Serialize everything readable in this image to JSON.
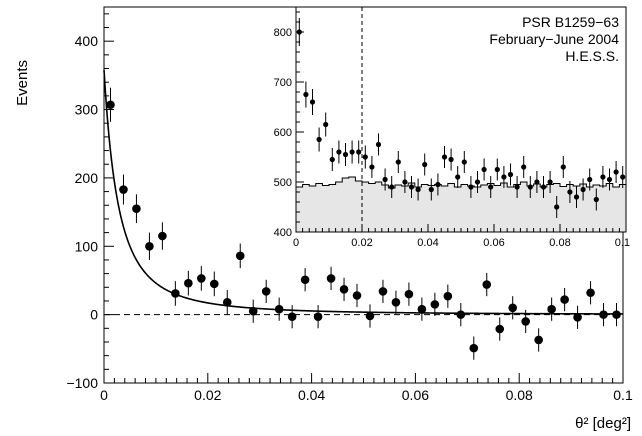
{
  "chart_data": [
    {
      "type": "scatter",
      "title": "",
      "xlabel": "θ² [deg²]",
      "ylabel": "Events",
      "xlim": [
        0,
        0.1
      ],
      "ylim": [
        -100,
        450
      ],
      "xticks": [
        0,
        0.02,
        0.04,
        0.06,
        0.08,
        0.1
      ],
      "yticks": [
        -100,
        0,
        100,
        200,
        300,
        400
      ],
      "xtick_labels": [
        "0",
        "0.02",
        "0.04",
        "0.06",
        "0.08",
        "0.1"
      ],
      "ytick_labels": [
        "−100",
        "0",
        "100",
        "200",
        "300",
        "400"
      ],
      "annotations": [
        "PSR B1259−63",
        "February−June 2004",
        "H.E.S.S."
      ],
      "grid": false,
      "series": [
        {
          "kind": "points-with-errors",
          "x": [
            0.00125,
            0.00375,
            0.00625,
            0.00875,
            0.01125,
            0.01375,
            0.01625,
            0.01875,
            0.02125,
            0.02375,
            0.02625,
            0.02875,
            0.03125,
            0.03375,
            0.03625,
            0.03875,
            0.04125,
            0.04375,
            0.04625,
            0.04875,
            0.05125,
            0.05375,
            0.05625,
            0.05875,
            0.06125,
            0.06375,
            0.06625,
            0.06875,
            0.07125,
            0.07375,
            0.07625,
            0.07875,
            0.08125,
            0.08375,
            0.08625,
            0.08875,
            0.09125,
            0.09375,
            0.09625,
            0.09875
          ],
          "y": [
            307,
            183,
            155,
            100,
            115,
            31,
            46,
            53,
            45,
            18,
            86,
            5,
            34,
            8,
            -3,
            51,
            -3,
            53,
            37,
            28,
            -2,
            34,
            18,
            30,
            8,
            15,
            27,
            0,
            -49,
            44,
            -21,
            10,
            -10,
            -37,
            8,
            22,
            -4,
            32,
            0,
            0
          ],
          "yerr": [
            25,
            22,
            21,
            20,
            20,
            18,
            18,
            18,
            18,
            18,
            18,
            17,
            17,
            17,
            17,
            17,
            17,
            17,
            17,
            17,
            17,
            17,
            17,
            17,
            17,
            17,
            17,
            17,
            17,
            17,
            17,
            17,
            17,
            17,
            17,
            17,
            17,
            17,
            17,
            17
          ]
        },
        {
          "kind": "fit-curve",
          "model": "A/(1+x/x0)^2 + c",
          "params": {
            "A": 358,
            "x0": 0.0056,
            "c": 0
          }
        },
        {
          "kind": "reference-line",
          "y": 0,
          "style": "dashed"
        }
      ]
    },
    {
      "type": "scatter",
      "title": "",
      "xlabel": "",
      "ylabel": "",
      "xlim": [
        0,
        0.1
      ],
      "ylim": [
        400,
        850
      ],
      "xticks": [
        0,
        0.02,
        0.04,
        0.06,
        0.08,
        0.1
      ],
      "yticks": [
        400,
        500,
        600,
        700,
        800
      ],
      "xtick_labels": [
        "0",
        "0.02",
        "0.04",
        "0.06",
        "0.08",
        "0.1"
      ],
      "ytick_labels": [
        "400",
        "500",
        "600",
        "700",
        "800"
      ],
      "vline_x": 0.02,
      "series": [
        {
          "kind": "points-with-errors",
          "x": [
            0.001,
            0.003,
            0.005,
            0.007,
            0.009,
            0.011,
            0.013,
            0.015,
            0.017,
            0.019,
            0.021,
            0.023,
            0.025,
            0.027,
            0.029,
            0.031,
            0.033,
            0.035,
            0.037,
            0.039,
            0.041,
            0.043,
            0.045,
            0.047,
            0.049,
            0.051,
            0.053,
            0.055,
            0.057,
            0.059,
            0.061,
            0.063,
            0.065,
            0.067,
            0.069,
            0.071,
            0.073,
            0.075,
            0.077,
            0.079,
            0.081,
            0.083,
            0.085,
            0.087,
            0.089,
            0.091,
            0.093,
            0.095,
            0.097,
            0.099
          ],
          "y": [
            800,
            675,
            660,
            585,
            615,
            545,
            560,
            555,
            560,
            560,
            550,
            530,
            575,
            505,
            490,
            540,
            500,
            490,
            485,
            535,
            485,
            495,
            550,
            545,
            510,
            540,
            490,
            500,
            525,
            490,
            525,
            510,
            515,
            490,
            530,
            490,
            500,
            490,
            500,
            450,
            530,
            480,
            470,
            485,
            505,
            465,
            510,
            505,
            520,
            510
          ],
          "yerr": [
            28,
            26,
            26,
            24,
            24,
            23,
            23,
            23,
            23,
            23,
            23,
            22,
            22,
            22,
            22,
            22,
            22,
            22,
            22,
            22,
            22,
            22,
            22,
            22,
            22,
            22,
            22,
            22,
            22,
            22,
            22,
            22,
            22,
            22,
            22,
            22,
            22,
            22,
            22,
            22,
            22,
            22,
            22,
            22,
            22,
            22,
            22,
            22,
            22,
            22
          ]
        },
        {
          "kind": "background-histogram",
          "bin_width": 0.002,
          "values": [
            490,
            495,
            492,
            497,
            493,
            495,
            500,
            508,
            510,
            502,
            500,
            497,
            500,
            494,
            488,
            494,
            492,
            498,
            490,
            495,
            493,
            495,
            492,
            497,
            490,
            495,
            492,
            490,
            494,
            497,
            493,
            498,
            490,
            495,
            500,
            492,
            496,
            490,
            495,
            497,
            491,
            495,
            492,
            496,
            490,
            494,
            492,
            497,
            490,
            495
          ]
        }
      ]
    }
  ]
}
